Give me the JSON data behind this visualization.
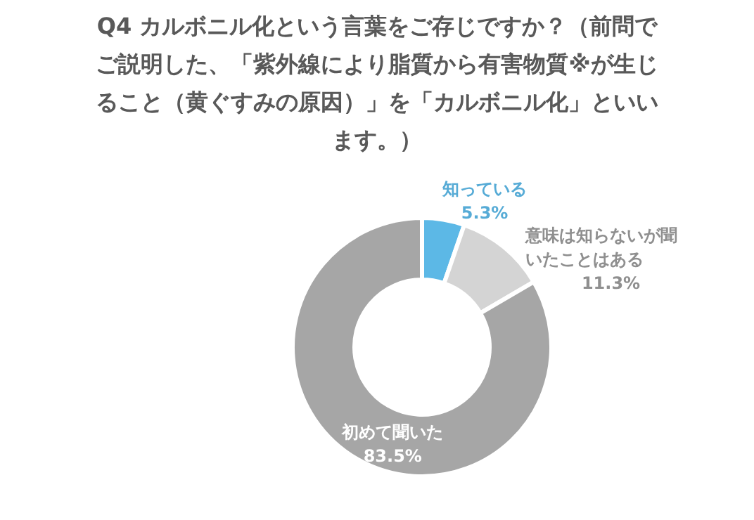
{
  "chart_data": {
    "type": "donut",
    "title": "Q4 カルボニル化という言葉をご存じですか？（前問でご説明した、「紫外線により脂質から有害物質※が生じること（黄ぐすみの原因）」を「カルボニル化」といいます。）",
    "categories": [
      "知っている",
      "意味は知らないが聞いたことはある",
      "初めて聞いた"
    ],
    "values": [
      5.3,
      11.3,
      83.5
    ],
    "colors": [
      "#5cb8e6",
      "#d4d4d4",
      "#a6a6a6"
    ],
    "data_labels": true,
    "value_labels": [
      "5.3%",
      "11.3%",
      "83.5%"
    ]
  }
}
